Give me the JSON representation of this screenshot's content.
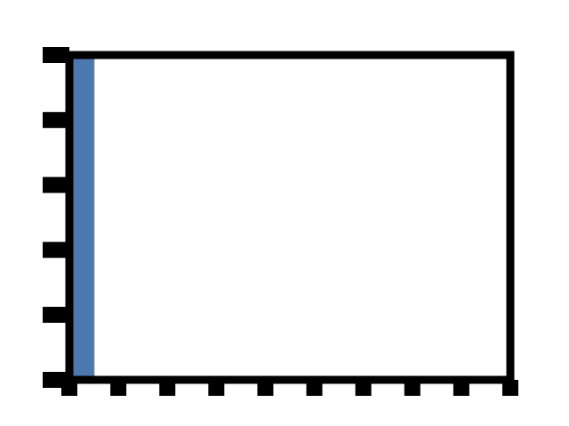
{
  "chart_data": {
    "type": "bar",
    "title": "",
    "xlabel": "",
    "ylabel": "",
    "x_tick_count": 9,
    "y_tick_count": 6,
    "bars": [
      {
        "x_start": 0,
        "x_end": 0.5,
        "value": 1.0
      },
      {
        "x_start": 0.5,
        "x_end": 1.0,
        "value": 0.007
      },
      {
        "x_start": 1.0,
        "x_end": 1.5,
        "value": 0.004
      },
      {
        "x_start": 1.5,
        "x_end": 2.0,
        "value": 0.0
      },
      {
        "x_start": 2.0,
        "x_end": 2.5,
        "value": 0.0
      },
      {
        "x_start": 2.5,
        "x_end": 3.0,
        "value": 0.0
      },
      {
        "x_start": 3.0,
        "x_end": 3.5,
        "value": 0.0
      },
      {
        "x_start": 3.5,
        "x_end": 4.0,
        "value": 0.0
      },
      {
        "x_start": 4.0,
        "x_end": 4.5,
        "value": 0.0
      },
      {
        "x_start": 4.5,
        "x_end": 5.0,
        "value": 0.0
      },
      {
        "x_start": 5.0,
        "x_end": 5.5,
        "value": 0.0
      },
      {
        "x_start": 5.5,
        "x_end": 6.0,
        "value": 0.0
      },
      {
        "x_start": 6.0,
        "x_end": 6.5,
        "value": 0.0
      },
      {
        "x_start": 6.5,
        "x_end": 7.0,
        "value": 0.0
      },
      {
        "x_start": 7.0,
        "x_end": 7.5,
        "value": 0.0
      },
      {
        "x_start": 7.5,
        "x_end": 8.0,
        "value": 0.0
      },
      {
        "x_start": 8.0,
        "x_end": 8.5,
        "value": 0.0
      },
      {
        "x_start": 8.5,
        "x_end": 9.0,
        "value": 0.0
      }
    ],
    "xlim": [
      0,
      9
    ],
    "ylim": [
      0,
      1.0
    ],
    "grid": false,
    "legend": "none",
    "bar_color": "#4c78b0",
    "bar_edge_color": "#7a7a7a",
    "axis_color": "#000000",
    "background_color": "#ffffff"
  }
}
